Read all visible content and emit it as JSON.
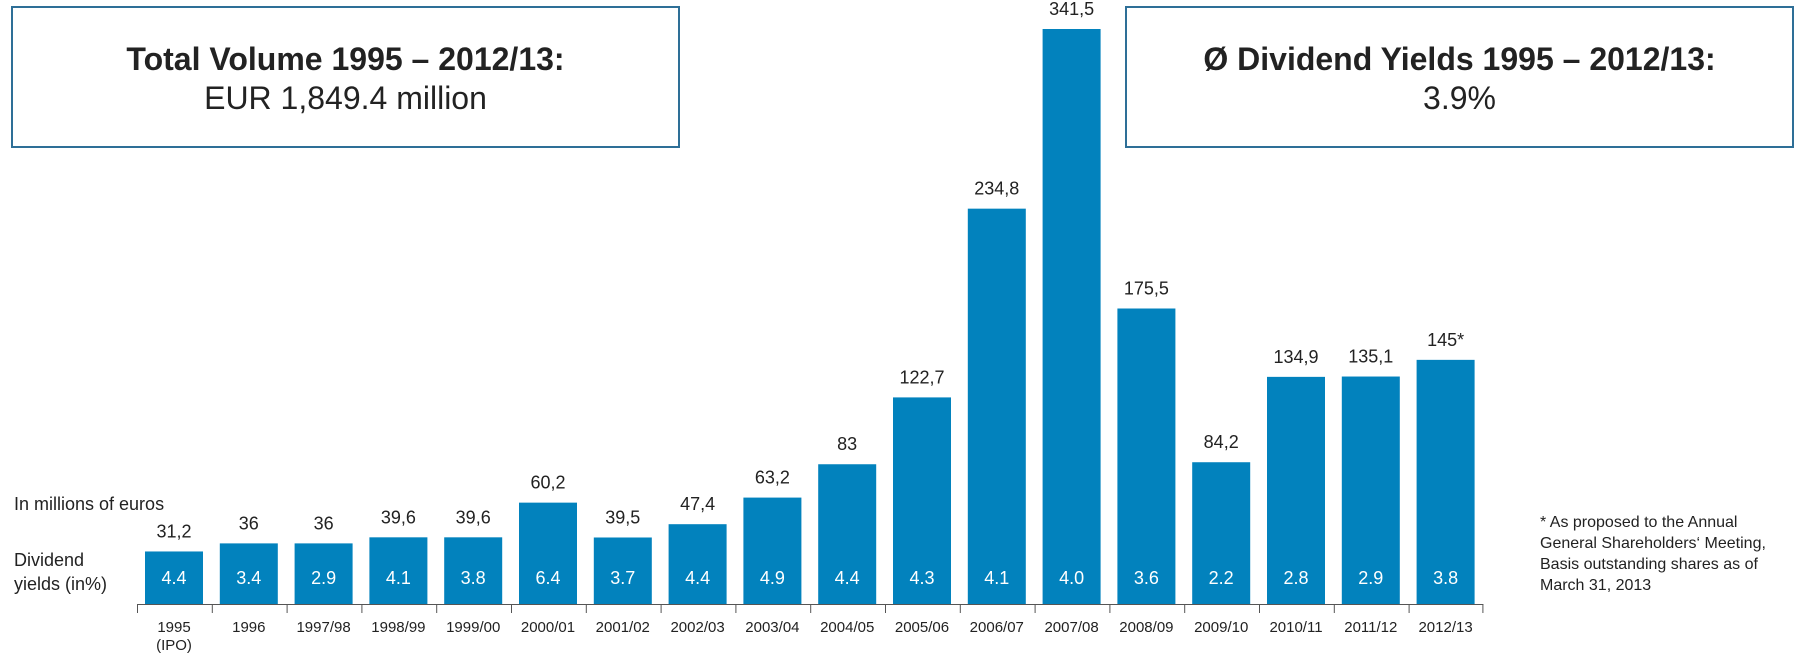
{
  "summary": {
    "total_volume_title": "Total Volume 1995 – 2012/13:",
    "total_volume_value": "EUR 1,849.4 million",
    "dividend_yield_title": "Ø Dividend Yields 1995 – 2012/13:",
    "dividend_yield_value": "3.9%"
  },
  "labels": {
    "unit": "In millions of euros",
    "yields": "Dividend yields (in%)",
    "footnote": "* As proposed to the Annual General Shareholders‘ Meeting, Basis outstanding shares as of March 31, 2013"
  },
  "colors": {
    "bar": "#0282bd",
    "box_border": "#2e6f97",
    "axis": "#555555"
  },
  "chart_data": {
    "type": "bar",
    "categories": [
      "1995 (IPO)",
      "1996",
      "1997/98",
      "1998/99",
      "1999/00",
      "2000/01",
      "2001/02",
      "2002/03",
      "2003/04",
      "2004/05",
      "2005/06",
      "2006/07",
      "2007/08",
      "2008/09",
      "2009/10",
      "2010/11",
      "2011/12",
      "2012/13"
    ],
    "values": [
      31.2,
      36,
      36,
      39.6,
      39.6,
      60.2,
      39.5,
      47.4,
      63.2,
      83,
      122.7,
      234.8,
      341.5,
      175.5,
      84.2,
      134.9,
      135.1,
      145
    ],
    "value_labels": [
      "31,2",
      "36",
      "36",
      "39,6",
      "39,6",
      "60,2",
      "39,5",
      "47,4",
      "63,2",
      "83",
      "122,7",
      "234,8",
      "341,5",
      "175,5",
      "84,2",
      "134,9",
      "135,1",
      "145*"
    ],
    "dividend_yields": [
      "4.4",
      "3.4",
      "2.9",
      "4.1",
      "3.8",
      "6.4",
      "3.7",
      "4.4",
      "4.9",
      "4.4",
      "4.3",
      "4.1",
      "4.0",
      "3.6",
      "2.2",
      "2.8",
      "2.9",
      "3.8"
    ],
    "ylabel": "In millions of euros",
    "ylim": [
      0,
      341.5
    ],
    "grid": false
  }
}
